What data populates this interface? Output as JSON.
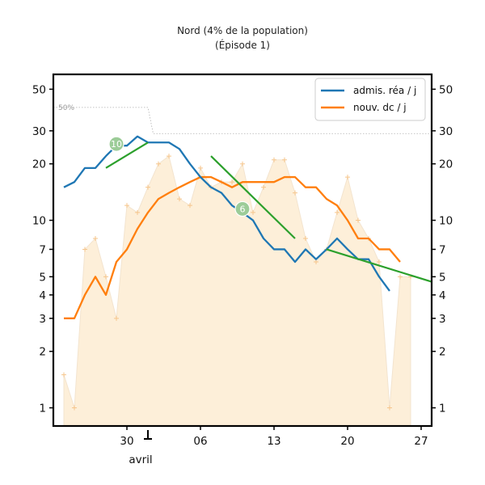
{
  "chart_data": {
    "type": "line",
    "title": "Nord (4% de la population)",
    "subtitle": "(Épisode 1)",
    "y_scale": "log",
    "ylim": [
      0.8,
      60
    ],
    "yticks": [
      1,
      2,
      3,
      4,
      5,
      7,
      10,
      20,
      30,
      50
    ],
    "ytick_labels": [
      "1",
      "2",
      "3",
      "4",
      "5",
      "7",
      "10",
      "20",
      "30",
      "50"
    ],
    "x_start": "2020-03-24",
    "xlim": [
      "2020-03-23",
      "2020-04-28"
    ],
    "xticks": [
      "2020-03-30",
      "2020-04-06",
      "2020-04-13",
      "2020-04-20",
      "2020-04-27"
    ],
    "xtick_labels": [
      "30",
      "06",
      "13",
      "20",
      "27"
    ],
    "month_marker": {
      "date": "2020-04-01",
      "label": "avril"
    },
    "legend_position": "top-right",
    "grid": false,
    "colors": {
      "adm": "#1f77b4",
      "dc": "#ff7f0e",
      "fit": "#2ca02c",
      "raw_fill": "#fdefd9",
      "raw_marker": "#f6c58b",
      "badge": "#9ccc98",
      "threshold": "#b0b0b0"
    },
    "series": [
      {
        "name": "admis. réa / j",
        "key": "adm",
        "values": [
          15,
          16,
          19,
          19,
          22,
          25,
          25,
          28,
          26,
          26,
          26,
          24,
          20,
          17,
          15,
          14,
          12,
          11,
          10,
          8,
          7,
          7,
          6,
          7,
          6.2,
          7,
          8,
          7,
          6.2,
          6.2,
          5,
          4.2
        ]
      },
      {
        "name": "nouv. dc / j",
        "key": "dc",
        "values": [
          3,
          3,
          4,
          5,
          4,
          6,
          7,
          9,
          11,
          13,
          14,
          15,
          16,
          17,
          17,
          16,
          15,
          16,
          16,
          16,
          16,
          17,
          17,
          15,
          15,
          13,
          12,
          10,
          8,
          8,
          7,
          7,
          6
        ]
      },
      {
        "key": "raw",
        "values": [
          1.5,
          1,
          7,
          8,
          5,
          3,
          12,
          11,
          15,
          20,
          22,
          13,
          12,
          19,
          15,
          16,
          16,
          20,
          11,
          15,
          21,
          21,
          14,
          8,
          6,
          7,
          11,
          17,
          10,
          8,
          6,
          1,
          5,
          5
        ]
      }
    ],
    "threshold": {
      "label": "50%",
      "before": 40,
      "after": 29,
      "switch_date": "2020-04-01"
    },
    "fits": [
      {
        "start": "2020-03-28",
        "end": "2020-04-01",
        "from": 19,
        "to": 26,
        "badge": "10",
        "badge_date": "2020-03-29",
        "badge_value": 25.5
      },
      {
        "start": "2020-04-07",
        "end": "2020-04-15",
        "from": 22,
        "to": 8,
        "badge": "6",
        "badge_date": "2020-04-10",
        "badge_value": 11.5
      },
      {
        "start": "2020-04-18",
        "end": "2020-04-28",
        "from": 7,
        "to": 4.7,
        "badge": "",
        "badge_date": "",
        "badge_value": 0
      }
    ]
  }
}
